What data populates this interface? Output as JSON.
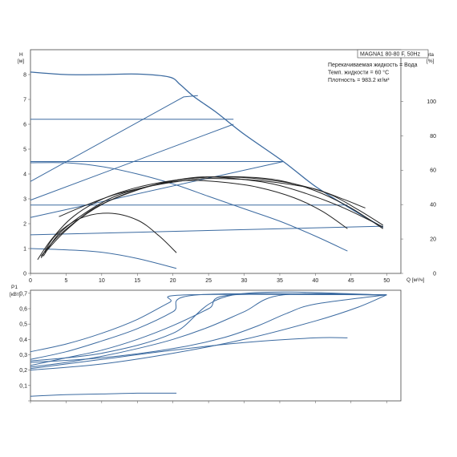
{
  "chart_data": [
    {
      "type": "line",
      "id": "pump_curve",
      "xlabel": "Q [м³/ч]",
      "ylabel": "H\n[м]",
      "y2label": "eta\n[%]",
      "xlim": [
        0,
        52
      ],
      "ylim": [
        0,
        9
      ],
      "y2lim": [
        0,
        130
      ],
      "xticks": [
        0,
        5,
        10,
        15,
        20,
        25,
        30,
        35,
        40,
        45,
        50
      ],
      "yticks": [
        0,
        1,
        2,
        3,
        4,
        5,
        6,
        7,
        8
      ],
      "y2ticks": [
        0,
        20,
        40,
        60,
        80,
        100
      ],
      "info_title": "MAGNA1 80-80 F, 50Hz",
      "info_lines": [
        "Перекачиваемая жидкость = Вода",
        "Темп. жидкости = 60 °C",
        "Плотность = 983.2 кг/м³"
      ],
      "blue": "#3b6aa0",
      "black": "#222222",
      "gray": "#555555",
      "constant_curves": [
        {
          "x": [
            0,
            28.5
          ],
          "y": [
            6.2,
            6.2
          ]
        },
        {
          "x": [
            0,
            35.5
          ],
          "y": [
            4.5,
            4.5
          ]
        },
        {
          "x": [
            0,
            44.5
          ],
          "y": [
            2.75,
            2.75
          ]
        }
      ],
      "proportional_curves": [
        {
          "x": [
            0,
            21.5,
            23.5
          ],
          "y": [
            3.7,
            7.1,
            7.15
          ]
        },
        {
          "x": [
            0,
            28.5
          ],
          "y": [
            2.95,
            6.0
          ]
        },
        {
          "x": [
            0,
            35.5
          ],
          "y": [
            2.25,
            4.5
          ]
        },
        {
          "x": [
            0,
            49.5
          ],
          "y": [
            1.55,
            1.9
          ]
        }
      ],
      "max_curve": {
        "x": [
          0,
          5,
          10,
          15,
          19.5,
          21,
          23,
          26,
          30,
          35.5,
          40,
          45,
          49.5
        ],
        "y": [
          8.1,
          8.0,
          8.0,
          8.02,
          7.9,
          7.6,
          7.1,
          6.5,
          5.6,
          4.5,
          3.5,
          2.6,
          1.85
        ]
      },
      "falling_curves": [
        {
          "x": [
            0,
            5,
            10,
            15,
            20,
            25,
            30,
            35,
            40,
            44.5
          ],
          "y": [
            4.45,
            4.45,
            4.3,
            4.0,
            3.6,
            3.1,
            2.6,
            2.1,
            1.5,
            0.9
          ]
        },
        {
          "x": [
            0,
            5,
            10,
            15,
            20.5
          ],
          "y": [
            1.0,
            0.95,
            0.85,
            0.6,
            0.2
          ]
        }
      ],
      "eta_curves": [
        {
          "color": "black",
          "x": [
            1,
            3,
            6,
            10,
            15,
            20,
            25,
            30,
            35,
            40,
            45,
            49.5
          ],
          "y": [
            8,
            20,
            33,
            43,
            50,
            54,
            56,
            56,
            54,
            48,
            38,
            26
          ]
        },
        {
          "color": "black",
          "x": [
            1.5,
            4,
            8,
            12,
            17,
            22,
            27,
            32,
            37,
            42,
            46,
            49.5
          ],
          "y": [
            10,
            22,
            35,
            44,
            51,
            55,
            56,
            55,
            52,
            46,
            37,
            28
          ]
        },
        {
          "color": "black",
          "x": [
            2,
            5,
            9,
            14,
            19,
            24,
            29,
            34,
            39,
            44,
            49.5
          ],
          "y": [
            12,
            25,
            38,
            47,
            53,
            56,
            55,
            52,
            46,
            38,
            27
          ]
        },
        {
          "color": "black",
          "x": [
            1.8,
            4,
            8,
            12,
            17,
            22,
            27,
            32,
            37,
            41,
            44.5
          ],
          "y": [
            10,
            23,
            36,
            45,
            51,
            54,
            53,
            50,
            44,
            36,
            26
          ]
        },
        {
          "color": "black",
          "x": [
            1.5,
            3.5,
            7,
            11,
            15,
            18,
            20.5
          ],
          "y": [
            9,
            22,
            32,
            35,
            31,
            22,
            12
          ]
        },
        {
          "color": "black",
          "x": [
            4,
            8,
            12,
            16,
            20,
            24,
            28,
            32,
            36,
            40,
            44,
            47
          ],
          "y": [
            33,
            40,
            46,
            50,
            53,
            55,
            55,
            54,
            52,
            49,
            43,
            38
          ]
        }
      ]
    },
    {
      "type": "line",
      "id": "power_curve",
      "ylabel": "P1\n[кВт]",
      "xlim": [
        0,
        52
      ],
      "ylim": [
        0.2,
        0.72
      ],
      "yticks": [
        0.2,
        0.3,
        0.4,
        0.5,
        0.6,
        0.7
      ],
      "ytick_labels": [
        "0,2",
        "0,3",
        "0,4",
        "0,5",
        "0,6",
        "0,7"
      ],
      "power_curves": [
        {
          "x": [
            0,
            5,
            10,
            15,
            19.5,
            22,
            50
          ],
          "y": [
            0.32,
            0.37,
            0.44,
            0.53,
            0.64,
            0.69,
            0.69
          ]
        },
        {
          "x": [
            0,
            5,
            10,
            15,
            20,
            23.5,
            50
          ],
          "y": [
            0.27,
            0.32,
            0.39,
            0.47,
            0.58,
            0.69,
            0.69
          ]
        },
        {
          "x": [
            0,
            5,
            10,
            15,
            20,
            25,
            28.5,
            50
          ],
          "y": [
            0.23,
            0.28,
            0.33,
            0.4,
            0.49,
            0.6,
            0.69,
            0.69
          ]
        },
        {
          "x": [
            0,
            5,
            10,
            15,
            20,
            25,
            30,
            35.5,
            50
          ],
          "y": [
            0.22,
            0.25,
            0.29,
            0.34,
            0.4,
            0.48,
            0.58,
            0.69,
            0.69
          ]
        },
        {
          "x": [
            0,
            10,
            20,
            30,
            40,
            46,
            50
          ],
          "y": [
            0.2,
            0.24,
            0.31,
            0.4,
            0.52,
            0.61,
            0.69
          ]
        },
        {
          "x": [
            0,
            10,
            20,
            27,
            32,
            36,
            40,
            50
          ],
          "y": [
            0.25,
            0.28,
            0.34,
            0.41,
            0.49,
            0.57,
            0.63,
            0.69
          ]
        },
        {
          "x": [
            0,
            10,
            20,
            28.5,
            50
          ],
          "y": [
            0.26,
            0.31,
            0.44,
            0.69,
            0.69
          ]
        },
        {
          "x": [
            0,
            10,
            20,
            30,
            40,
            44.5
          ],
          "y": [
            0.21,
            0.27,
            0.33,
            0.38,
            0.41,
            0.41
          ]
        },
        {
          "x": [
            0,
            5,
            10,
            15,
            20.5
          ],
          "y": [
            0.03,
            0.04,
            0.045,
            0.05,
            0.05
          ]
        }
      ]
    }
  ]
}
